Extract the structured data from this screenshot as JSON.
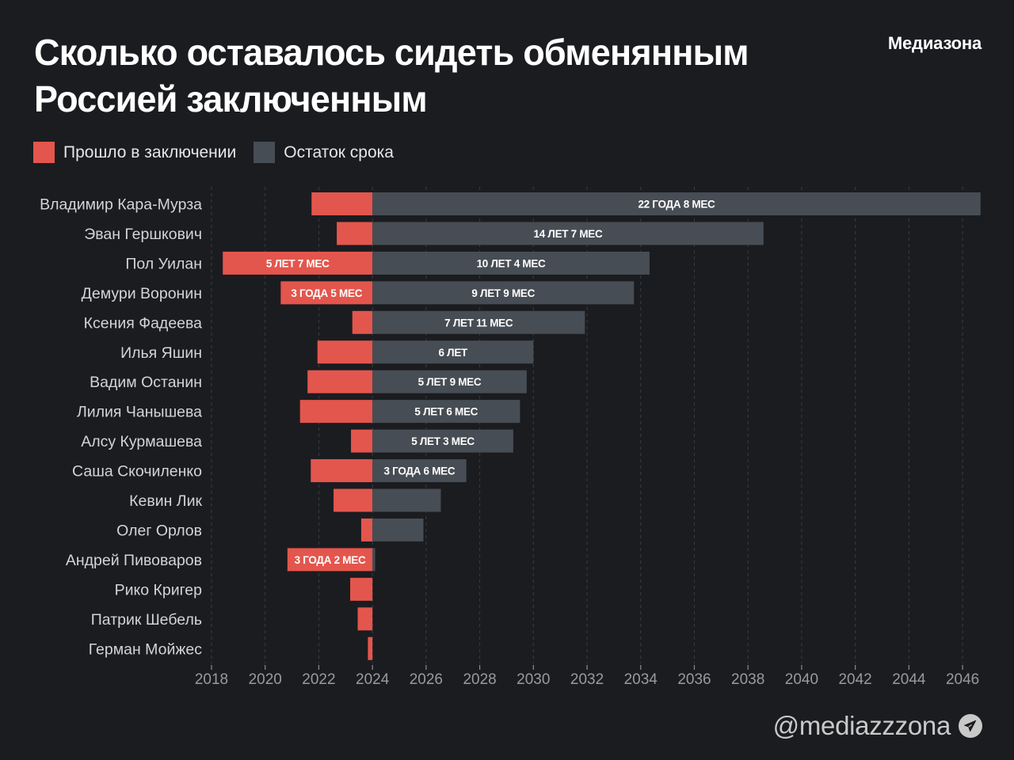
{
  "header": {
    "title_line1": "Сколько оставалось сидеть обменянным",
    "title_line2": "Россией заключенным",
    "brand": "Медиазона"
  },
  "legend": {
    "items": [
      {
        "label": "Прошло в заключении",
        "color": "#e3564d"
      },
      {
        "label": "Остаток срока",
        "color": "#474d54"
      }
    ]
  },
  "footer": {
    "handle": "@mediazzzona",
    "icon": "telegram-icon"
  },
  "colors": {
    "background": "#1b1c20",
    "served": "#e3564d",
    "remaining": "#474d54",
    "text": "#ffffff",
    "axis_text": "#9a9a9a"
  },
  "chart_data": {
    "type": "bar",
    "orientation": "horizontal",
    "stacked": "diverging",
    "title": "Сколько оставалось сидеть обменянным Россией заключенным",
    "xlabel": "",
    "ylabel": "",
    "exchange_year": 2024,
    "xlim": [
      2018,
      2046.8
    ],
    "xticks": [
      2018,
      2020,
      2022,
      2024,
      2026,
      2028,
      2030,
      2032,
      2034,
      2036,
      2038,
      2040,
      2042,
      2044,
      2046
    ],
    "grid": true,
    "legend_position": "top-left",
    "categories": [
      "Владимир Кара-Мурза",
      "Эван Гершкович",
      "Пол Уилан",
      "Демури Воронин",
      "Ксения Фадеева",
      "Илья Яшин",
      "Вадим Останин",
      "Лилия Чанышева",
      "Алсу Курмашева",
      "Саша Скочиленко",
      "Кевин Лик",
      "Олег Орлов",
      "Андрей Пивоваров",
      "Рико Кригер",
      "Патрик Шебель",
      "Герман Мойжес"
    ],
    "series": [
      {
        "name": "Прошло в заключении",
        "unit": "years",
        "values": [
          2.27,
          1.33,
          5.58,
          3.42,
          0.75,
          2.05,
          2.42,
          2.7,
          0.8,
          2.3,
          1.45,
          0.42,
          3.17,
          0.83,
          0.55,
          0.17
        ],
        "labels": [
          "",
          "",
          "5 ЛЕТ 7 МЕС",
          "3 ГОДА 5 МЕС",
          "",
          "",
          "",
          "",
          "",
          "",
          "",
          "",
          "3 ГОДА 2 МЕС",
          "",
          "",
          ""
        ]
      },
      {
        "name": "Остаток срока",
        "unit": "years",
        "values": [
          22.67,
          14.58,
          10.33,
          9.75,
          7.92,
          6.0,
          5.75,
          5.5,
          5.25,
          3.5,
          2.55,
          1.9,
          0.1,
          0,
          0,
          0
        ],
        "labels": [
          "22 ГОДА 8 МЕС",
          "14 ЛЕТ 7 МЕС",
          "10 ЛЕТ 4 МЕС",
          "9 ЛЕТ 9 МЕС",
          "7 ЛЕТ 11 МЕС",
          "6 ЛЕТ",
          "5 ЛЕТ 9 МЕС",
          "5 ЛЕТ 6 МЕС",
          "5 ЛЕТ 3 МЕС",
          "3 ГОДА 6 МЕС",
          "",
          "",
          "",
          "",
          "",
          ""
        ]
      }
    ]
  }
}
